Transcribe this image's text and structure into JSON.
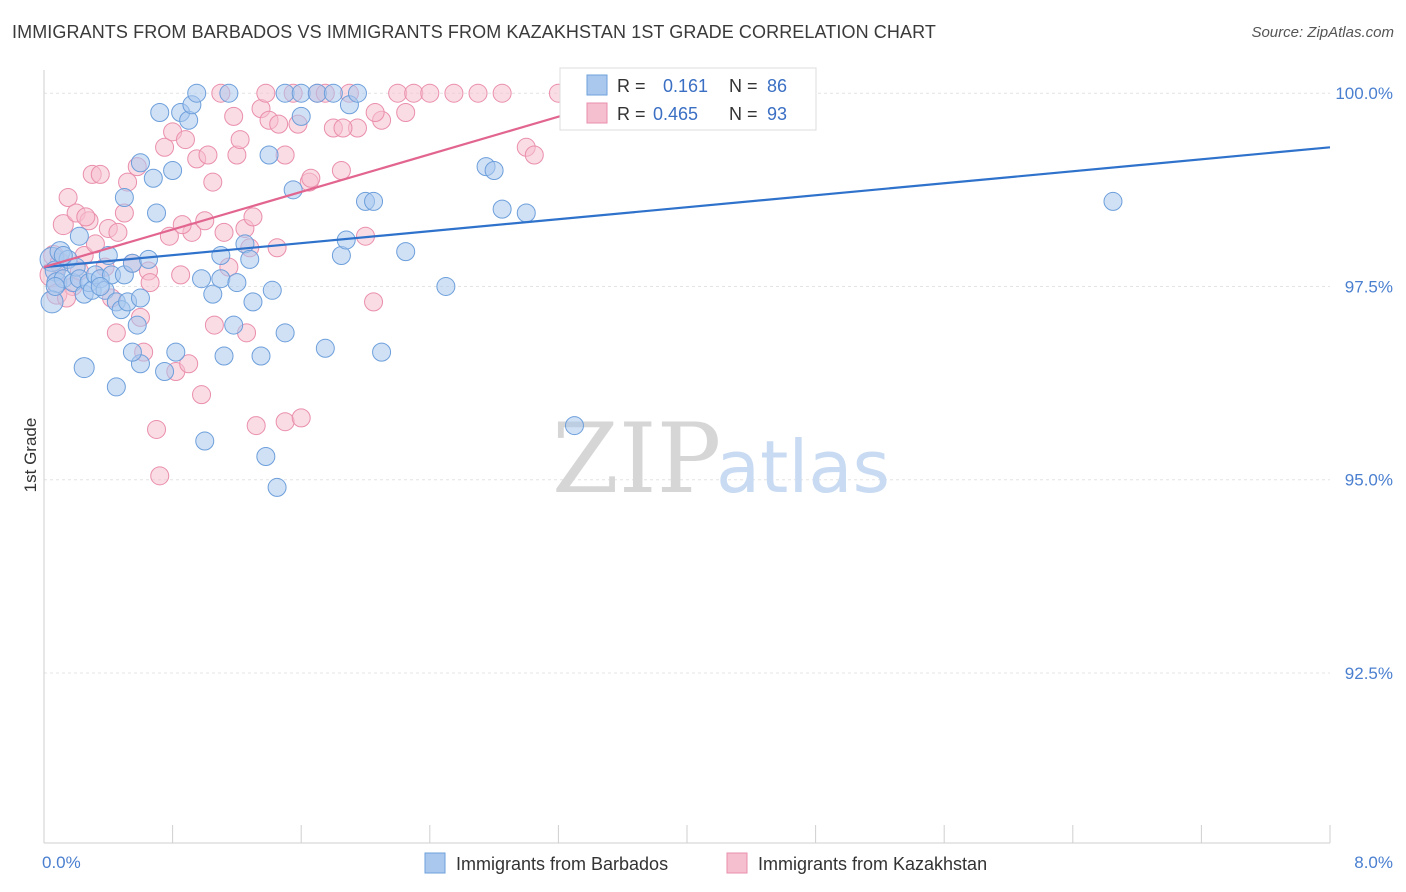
{
  "header": {
    "title": "IMMIGRANTS FROM BARBADOS VS IMMIGRANTS FROM KAZAKHSTAN 1ST GRADE CORRELATION CHART",
    "source": "Source: ZipAtlas.com"
  },
  "watermark": {
    "zip": "ZIP",
    "atlas": "atlas"
  },
  "colors": {
    "barbados_fill": "#aac8ee",
    "barbados_stroke": "#6d9fdb",
    "barbados_line": "#2f72cc",
    "kazakhstan_fill": "#f6bfd0",
    "kazakhstan_stroke": "#ea8fac",
    "kazakhstan_line": "#e2658f",
    "tick_text": "#4a7fd0",
    "grid": "#e4e4e4"
  },
  "stats": {
    "barbados": {
      "r_label": "R =",
      "r": "0.161",
      "n_label": "N =",
      "n": "86"
    },
    "kazakhstan": {
      "r_label": "R =",
      "r": "0.465",
      "n_label": "N =",
      "n": "93"
    }
  },
  "chart_data": {
    "type": "scatter",
    "ylabel": "1st Grade",
    "xlim": [
      0.0,
      8.0
    ],
    "ylim": [
      90.3,
      100.3
    ],
    "x_tick_labels": [
      {
        "value": 0.0,
        "label": "0.0%"
      },
      {
        "value": 8.0,
        "label": "8.0%"
      }
    ],
    "y_tick_labels": [
      {
        "value": 100.0,
        "label": "100.0%"
      },
      {
        "value": 97.5,
        "label": "97.5%"
      },
      {
        "value": 95.0,
        "label": "95.0%"
      },
      {
        "value": 92.5,
        "label": "92.5%"
      }
    ],
    "grid": true,
    "legend_position": "bottom",
    "series": [
      {
        "name": "Immigrants from Barbados",
        "trend": {
          "x": [
            0.0,
            8.0
          ],
          "y": [
            97.75,
            99.3
          ]
        },
        "points": [
          [
            0.05,
            97.85,
            12
          ],
          [
            0.07,
            97.7,
            10
          ],
          [
            0.08,
            97.55,
            10
          ],
          [
            0.1,
            97.95,
            10
          ],
          [
            0.12,
            97.6,
            9
          ],
          [
            0.15,
            97.85,
            9
          ],
          [
            0.18,
            97.55,
            9
          ],
          [
            0.2,
            97.75,
            9
          ],
          [
            0.22,
            97.6,
            9
          ],
          [
            0.25,
            97.4,
            9
          ],
          [
            0.28,
            97.55,
            9
          ],
          [
            0.3,
            97.45,
            9
          ],
          [
            0.32,
            97.65,
            9
          ],
          [
            0.35,
            97.6,
            9
          ],
          [
            0.38,
            97.45,
            9
          ],
          [
            0.4,
            97.9,
            9
          ],
          [
            0.42,
            97.65,
            9
          ],
          [
            0.45,
            97.3,
            9
          ],
          [
            0.48,
            97.2,
            9
          ],
          [
            0.5,
            97.65,
            9
          ],
          [
            0.52,
            97.3,
            9
          ],
          [
            0.55,
            97.8,
            9
          ],
          [
            0.58,
            97.0,
            9
          ],
          [
            0.6,
            96.5,
            9
          ],
          [
            0.05,
            97.3,
            11
          ],
          [
            0.12,
            97.9,
            9
          ],
          [
            0.22,
            98.15,
            9
          ],
          [
            0.25,
            96.45,
            10
          ],
          [
            0.35,
            97.5,
            9
          ],
          [
            0.45,
            96.2,
            9
          ],
          [
            0.5,
            98.65,
            9
          ],
          [
            0.55,
            96.65,
            9
          ],
          [
            0.6,
            97.35,
            9
          ],
          [
            0.6,
            99.1,
            9
          ],
          [
            0.65,
            97.85,
            9
          ],
          [
            0.68,
            98.9,
            9
          ],
          [
            0.7,
            98.45,
            9
          ],
          [
            0.72,
            99.75,
            9
          ],
          [
            0.75,
            96.4,
            9
          ],
          [
            0.8,
            99.0,
            9
          ],
          [
            0.82,
            96.65,
            9
          ],
          [
            0.85,
            99.75,
            9
          ],
          [
            0.9,
            99.65,
            9
          ],
          [
            0.92,
            99.85,
            9
          ],
          [
            0.95,
            100.0,
            9
          ],
          [
            0.98,
            97.6,
            9
          ],
          [
            1.0,
            95.5,
            9
          ],
          [
            1.05,
            97.4,
            9
          ],
          [
            1.1,
            97.6,
            9
          ],
          [
            1.1,
            97.9,
            9
          ],
          [
            1.12,
            96.6,
            9
          ],
          [
            1.15,
            100.0,
            9
          ],
          [
            1.18,
            97.0,
            9
          ],
          [
            1.2,
            97.55,
            9
          ],
          [
            1.25,
            98.05,
            9
          ],
          [
            1.28,
            97.85,
            9
          ],
          [
            1.3,
            97.3,
            9
          ],
          [
            1.35,
            96.6,
            9
          ],
          [
            1.38,
            95.3,
            9
          ],
          [
            1.4,
            99.2,
            9
          ],
          [
            1.42,
            97.45,
            9
          ],
          [
            1.45,
            94.9,
            9
          ],
          [
            1.5,
            96.9,
            9
          ],
          [
            1.5,
            100.0,
            9
          ],
          [
            1.55,
            98.75,
            9
          ],
          [
            1.6,
            99.7,
            9
          ],
          [
            1.6,
            100.0,
            9
          ],
          [
            1.7,
            100.0,
            9
          ],
          [
            1.75,
            96.7,
            9
          ],
          [
            1.8,
            100.0,
            9
          ],
          [
            1.85,
            97.9,
            9
          ],
          [
            1.88,
            98.1,
            9
          ],
          [
            1.9,
            99.85,
            9
          ],
          [
            1.95,
            100.0,
            9
          ],
          [
            2.0,
            98.6,
            9
          ],
          [
            2.05,
            98.6,
            9
          ],
          [
            2.1,
            96.65,
            9
          ],
          [
            2.25,
            97.95,
            9
          ],
          [
            2.5,
            97.5,
            9
          ],
          [
            2.75,
            99.05,
            9
          ],
          [
            2.8,
            99.0,
            9
          ],
          [
            2.85,
            98.5,
            9
          ],
          [
            3.0,
            98.45,
            9
          ],
          [
            3.3,
            95.7,
            9
          ],
          [
            3.7,
            100.0,
            9
          ],
          [
            4.2,
            100.0,
            9
          ],
          [
            6.65,
            98.6,
            9
          ],
          [
            0.07,
            97.5,
            9
          ]
        ]
      },
      {
        "name": "Immigrants from Kazakhstan",
        "trend": {
          "x": [
            0.0,
            3.7
          ],
          "y": [
            97.75,
            100.0
          ]
        },
        "points": [
          [
            0.05,
            97.65,
            12
          ],
          [
            0.06,
            97.9,
            10
          ],
          [
            0.08,
            97.4,
            10
          ],
          [
            0.1,
            97.8,
            10
          ],
          [
            0.12,
            98.3,
            10
          ],
          [
            0.15,
            98.65,
            9
          ],
          [
            0.18,
            97.5,
            9
          ],
          [
            0.2,
            98.45,
            9
          ],
          [
            0.22,
            97.7,
            9
          ],
          [
            0.25,
            97.9,
            9
          ],
          [
            0.28,
            98.35,
            9
          ],
          [
            0.3,
            98.95,
            9
          ],
          [
            0.32,
            98.05,
            9
          ],
          [
            0.35,
            98.95,
            9
          ],
          [
            0.38,
            97.75,
            9
          ],
          [
            0.4,
            98.25,
            9
          ],
          [
            0.42,
            97.35,
            9
          ],
          [
            0.45,
            96.9,
            9
          ],
          [
            0.5,
            98.45,
            9
          ],
          [
            0.52,
            98.85,
            9
          ],
          [
            0.55,
            97.8,
            9
          ],
          [
            0.58,
            99.05,
            9
          ],
          [
            0.6,
            97.1,
            9
          ],
          [
            0.62,
            96.65,
            9
          ],
          [
            0.65,
            97.7,
            9
          ],
          [
            0.7,
            95.65,
            9
          ],
          [
            0.72,
            95.05,
            9
          ],
          [
            0.75,
            99.3,
            9
          ],
          [
            0.78,
            98.15,
            9
          ],
          [
            0.8,
            99.5,
            9
          ],
          [
            0.82,
            96.4,
            9
          ],
          [
            0.85,
            97.65,
            9
          ],
          [
            0.88,
            99.4,
            9
          ],
          [
            0.9,
            96.5,
            9
          ],
          [
            0.92,
            98.2,
            9
          ],
          [
            0.95,
            99.15,
            9
          ],
          [
            0.98,
            96.1,
            9
          ],
          [
            1.0,
            98.35,
            9
          ],
          [
            1.02,
            99.2,
            9
          ],
          [
            1.05,
            98.85,
            9
          ],
          [
            1.1,
            100.0,
            9
          ],
          [
            1.12,
            98.2,
            9
          ],
          [
            1.15,
            97.75,
            9
          ],
          [
            1.18,
            99.7,
            9
          ],
          [
            1.2,
            99.2,
            9
          ],
          [
            1.22,
            99.4,
            9
          ],
          [
            1.25,
            98.25,
            9
          ],
          [
            1.28,
            98.0,
            9
          ],
          [
            1.3,
            98.4,
            9
          ],
          [
            1.32,
            95.7,
            9
          ],
          [
            1.35,
            99.8,
            9
          ],
          [
            1.38,
            100.0,
            9
          ],
          [
            1.4,
            99.65,
            9
          ],
          [
            1.45,
            98.0,
            9
          ],
          [
            1.5,
            99.2,
            9
          ],
          [
            1.5,
            95.75,
            9
          ],
          [
            1.55,
            100.0,
            9
          ],
          [
            1.58,
            99.6,
            9
          ],
          [
            1.6,
            95.8,
            9
          ],
          [
            1.65,
            98.85,
            9
          ],
          [
            1.7,
            100.0,
            9
          ],
          [
            1.75,
            100.0,
            9
          ],
          [
            1.8,
            99.55,
            9
          ],
          [
            1.85,
            99.0,
            9
          ],
          [
            1.9,
            100.0,
            9
          ],
          [
            1.95,
            99.55,
            9
          ],
          [
            2.0,
            98.15,
            9
          ],
          [
            2.05,
            97.3,
            9
          ],
          [
            2.1,
            99.65,
            9
          ],
          [
            2.2,
            100.0,
            9
          ],
          [
            2.25,
            99.75,
            9
          ],
          [
            2.3,
            100.0,
            9
          ],
          [
            2.4,
            100.0,
            9
          ],
          [
            2.55,
            100.0,
            9
          ],
          [
            2.7,
            100.0,
            9
          ],
          [
            2.85,
            100.0,
            9
          ],
          [
            3.0,
            99.3,
            9
          ],
          [
            3.05,
            99.2,
            9
          ],
          [
            3.2,
            100.0,
            9
          ],
          [
            3.5,
            100.0,
            9
          ],
          [
            3.6,
            100.0,
            9
          ],
          [
            3.7,
            100.0,
            9
          ],
          [
            0.14,
            97.35,
            9
          ],
          [
            0.26,
            98.4,
            9
          ],
          [
            0.46,
            98.2,
            9
          ],
          [
            0.66,
            97.55,
            9
          ],
          [
            0.86,
            98.3,
            9
          ],
          [
            1.06,
            97.0,
            9
          ],
          [
            1.26,
            96.9,
            9
          ],
          [
            1.46,
            99.6,
            9
          ],
          [
            1.66,
            98.9,
            9
          ],
          [
            1.86,
            99.55,
            9
          ],
          [
            2.06,
            99.75,
            9
          ]
        ]
      }
    ]
  },
  "legend": {
    "items": [
      {
        "label": "Immigrants from Barbados"
      },
      {
        "label": "Immigrants from Kazakhstan"
      }
    ]
  }
}
